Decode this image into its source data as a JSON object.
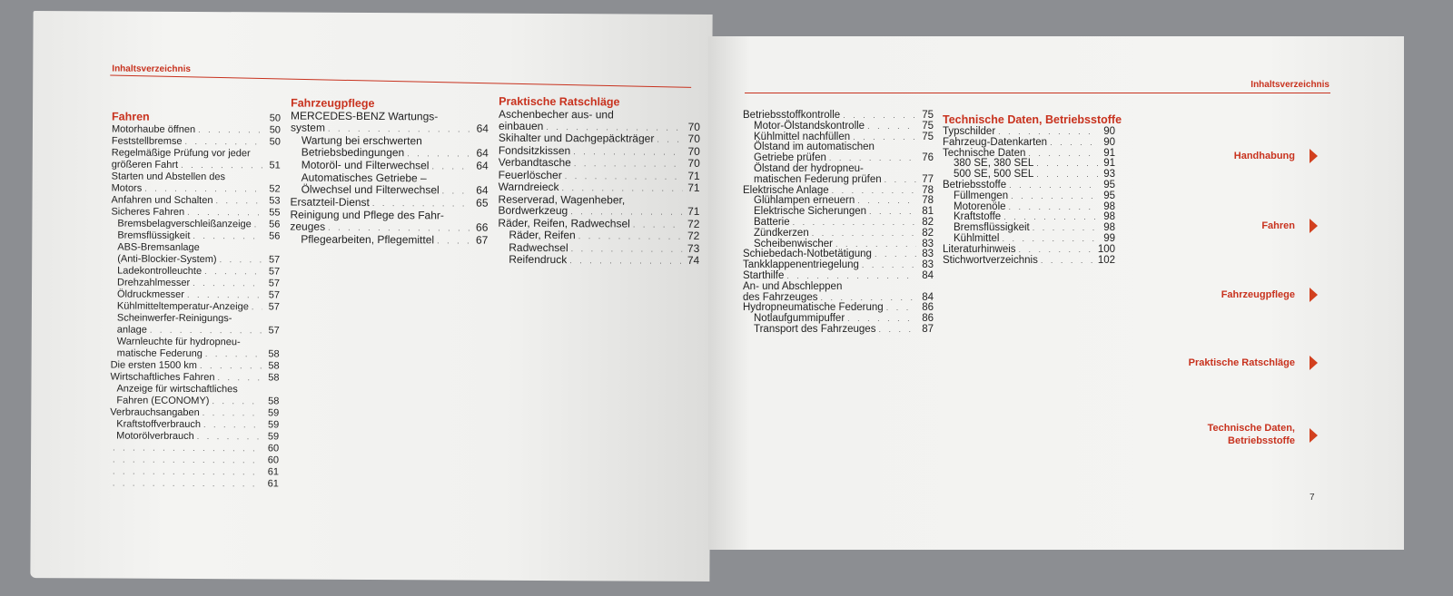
{
  "left_page": {
    "header": "Inhaltsverzeichnis",
    "columns": [
      {
        "title": "Fahren",
        "title_page": "50",
        "rows": [
          {
            "t": "Motorhaube öffnen",
            "p": "50",
            "i": 0
          },
          {
            "t": "Feststellbremse",
            "p": "50",
            "i": 0
          },
          {
            "t": "Regelmäßige Prüfung vor jeder",
            "p": "",
            "i": 0
          },
          {
            "t": "größeren Fahrt",
            "p": "51",
            "i": 0
          },
          {
            "t": "Starten und Abstellen des",
            "p": "",
            "i": 0
          },
          {
            "t": "Motors",
            "p": "52",
            "i": 0
          },
          {
            "t": "Anfahren und Schalten",
            "p": "53",
            "i": 0
          },
          {
            "t": "Sicheres Fahren",
            "p": "55",
            "i": 0
          },
          {
            "t": "Bremsbelagverschleißanzeige",
            "p": "56",
            "i": 1
          },
          {
            "t": "Bremsflüssigkeit",
            "p": "56",
            "i": 1
          },
          {
            "t": "ABS-Bremsanlage",
            "p": "",
            "i": 1
          },
          {
            "t": "(Anti-Blockier-System)",
            "p": "57",
            "i": 1
          },
          {
            "t": "Ladekontrolleuchte",
            "p": "57",
            "i": 1
          },
          {
            "t": "Drehzahlmesser",
            "p": "57",
            "i": 1
          },
          {
            "t": "Öldruckmesser",
            "p": "57",
            "i": 1
          },
          {
            "t": "Kühlmitteltemperatur-Anzeige",
            "p": "57",
            "i": 1
          },
          {
            "t": "Scheinwerfer-Reinigungs-",
            "p": "",
            "i": 1
          },
          {
            "t": "anlage",
            "p": "57",
            "i": 1
          },
          {
            "t": "Warnleuchte für hydropneu-",
            "p": "",
            "i": 1
          },
          {
            "t": "matische Federung",
            "p": "58",
            "i": 1
          },
          {
            "t": "Die ersten 1500 km",
            "p": "58",
            "i": 0
          },
          {
            "t": "Wirtschaftliches Fahren",
            "p": "58",
            "i": 0
          },
          {
            "t": "Anzeige für wirtschaftliches",
            "p": "",
            "i": 1
          },
          {
            "t": "Fahren (ECONOMY)",
            "p": "58",
            "i": 1
          },
          {
            "t": "Verbrauchsangaben",
            "p": "59",
            "i": 0
          },
          {
            "t": "Kraftstoffverbrauch",
            "p": "59",
            "i": 1
          },
          {
            "t": "Motorölverbrauch",
            "p": "59",
            "i": 1
          },
          {
            "t": "",
            "p": "60",
            "i": 0
          },
          {
            "t": "",
            "p": "60",
            "i": 0
          },
          {
            "t": "",
            "p": "61",
            "i": 0
          },
          {
            "t": "",
            "p": "61",
            "i": 0
          }
        ]
      },
      {
        "title": "Fahrzeugpflege",
        "title_page": "",
        "rows": [
          {
            "t": "MERCEDES-BENZ Wartungs-",
            "p": "",
            "i": 0
          },
          {
            "t": "system",
            "p": "64",
            "i": 0
          },
          {
            "t": "Wartung bei erschwerten",
            "p": "",
            "i": 1
          },
          {
            "t": "Betriebsbedingungen",
            "p": "64",
            "i": 1
          },
          {
            "t": "Motoröl- und Filterwechsel",
            "p": "64",
            "i": 1
          },
          {
            "t": "Automatisches Getriebe –",
            "p": "",
            "i": 1
          },
          {
            "t": "Ölwechsel und Filterwechsel",
            "p": "64",
            "i": 1
          },
          {
            "t": "Ersatzteil-Dienst",
            "p": "65",
            "i": 0
          },
          {
            "t": "Reinigung und Pflege des Fahr-",
            "p": "",
            "i": 0
          },
          {
            "t": "zeuges",
            "p": "66",
            "i": 0
          },
          {
            "t": "Pflegearbeiten, Pflegemittel",
            "p": "67",
            "i": 1
          }
        ]
      },
      {
        "title": "Praktische Ratschläge",
        "title_page": "",
        "rows": [
          {
            "t": "Aschenbecher aus- und",
            "p": "",
            "i": 0
          },
          {
            "t": "einbauen",
            "p": "70",
            "i": 0
          },
          {
            "t": "Skihalter und Dachgepäckträger",
            "p": "70",
            "i": 0
          },
          {
            "t": "Fondsitzkissen",
            "p": "70",
            "i": 0
          },
          {
            "t": "Verbandtasche",
            "p": "70",
            "i": 0
          },
          {
            "t": "Feuerlöscher",
            "p": "71",
            "i": 0
          },
          {
            "t": "Warndreieck",
            "p": "71",
            "i": 0
          },
          {
            "t": "Reserverad, Wagenheber,",
            "p": "",
            "i": 0
          },
          {
            "t": "Bordwerkzeug",
            "p": "71",
            "i": 0
          },
          {
            "t": "Räder, Reifen, Radwechsel",
            "p": "72",
            "i": 0
          },
          {
            "t": "Räder, Reifen",
            "p": "72",
            "i": 1
          },
          {
            "t": "Radwechsel",
            "p": "73",
            "i": 1
          },
          {
            "t": "Reifendruck",
            "p": "74",
            "i": 1
          }
        ]
      }
    ]
  },
  "right_page": {
    "header": "Inhaltsverzeichnis",
    "page_number": "7",
    "columns": [
      {
        "title": "",
        "title_page": "",
        "rows": [
          {
            "t": "Betriebsstoffkontrolle",
            "p": "75",
            "i": 0
          },
          {
            "t": "Motor-Ölstandskontrolle",
            "p": "75",
            "i": 1
          },
          {
            "t": "Kühlmittel nachfüllen",
            "p": "75",
            "i": 1
          },
          {
            "t": "Ölstand im automatischen",
            "p": "",
            "i": 1
          },
          {
            "t": "Getriebe prüfen",
            "p": "76",
            "i": 1
          },
          {
            "t": "Ölstand der hydropneu-",
            "p": "",
            "i": 1
          },
          {
            "t": "matischen Federung prüfen",
            "p": "77",
            "i": 1
          },
          {
            "t": "Elektrische Anlage",
            "p": "78",
            "i": 0
          },
          {
            "t": "Glühlampen erneuern",
            "p": "78",
            "i": 1
          },
          {
            "t": "Elektrische Sicherungen",
            "p": "81",
            "i": 1
          },
          {
            "t": "Batterie",
            "p": "82",
            "i": 1
          },
          {
            "t": "Zündkerzen",
            "p": "82",
            "i": 1
          },
          {
            "t": "Scheibenwischer",
            "p": "83",
            "i": 1
          },
          {
            "t": "Schiebedach-Notbetätigung",
            "p": "83",
            "i": 0
          },
          {
            "t": "Tankklappenentriegelung",
            "p": "83",
            "i": 0
          },
          {
            "t": "Starthilfe",
            "p": "84",
            "i": 0
          },
          {
            "t": "An- und Abschleppen",
            "p": "",
            "i": 0
          },
          {
            "t": "des Fahrzeuges",
            "p": "84",
            "i": 0
          },
          {
            "t": "Hydropneumatische Federung",
            "p": "86",
            "i": 0
          },
          {
            "t": "Notlaufgummipuffer",
            "p": "86",
            "i": 1
          },
          {
            "t": "Transport des Fahrzeuges",
            "p": "87",
            "i": 1
          }
        ]
      },
      {
        "title": "Technische Daten, Betriebsstoffe",
        "title_page": "",
        "rows": [
          {
            "t": "Typschilder",
            "p": "90",
            "i": 0
          },
          {
            "t": "Fahrzeug-Datenkarten",
            "p": "90",
            "i": 0
          },
          {
            "t": "Technische Daten",
            "p": "91",
            "i": 0
          },
          {
            "t": "380 SE, 380 SEL",
            "p": "91",
            "i": 1
          },
          {
            "t": "500 SE, 500 SEL",
            "p": "93",
            "i": 1
          },
          {
            "t": "Betriebsstoffe",
            "p": "95",
            "i": 0
          },
          {
            "t": "Füllmengen",
            "p": "95",
            "i": 1
          },
          {
            "t": "Motorenöle",
            "p": "98",
            "i": 1
          },
          {
            "t": "Kraftstoffe",
            "p": "98",
            "i": 1
          },
          {
            "t": "Bremsflüssigkeit",
            "p": "98",
            "i": 1
          },
          {
            "t": "Kühlmittel",
            "p": "99",
            "i": 1
          },
          {
            "t": "Literaturhinweis",
            "p": "100",
            "i": 0
          },
          {
            "t": "Stichwortverzeichnis",
            "p": "102",
            "i": 0
          }
        ]
      }
    ],
    "tabs": [
      {
        "label": "Handhabung",
        "icon": "triangle-right-icon"
      },
      {
        "label": "Fahren",
        "icon": "triangle-right-icon"
      },
      {
        "label": "Fahrzeugpflege",
        "icon": "triangle-right-icon"
      },
      {
        "label": "Praktische Ratschläge",
        "icon": "triangle-right-icon"
      },
      {
        "label": "Technische Daten,\nBetriebsstoffe",
        "icon": "triangle-right-icon"
      }
    ]
  },
  "colors": {
    "accent": "#c8321e",
    "paper": "#f3f3f1",
    "background": "#8c8e92"
  }
}
